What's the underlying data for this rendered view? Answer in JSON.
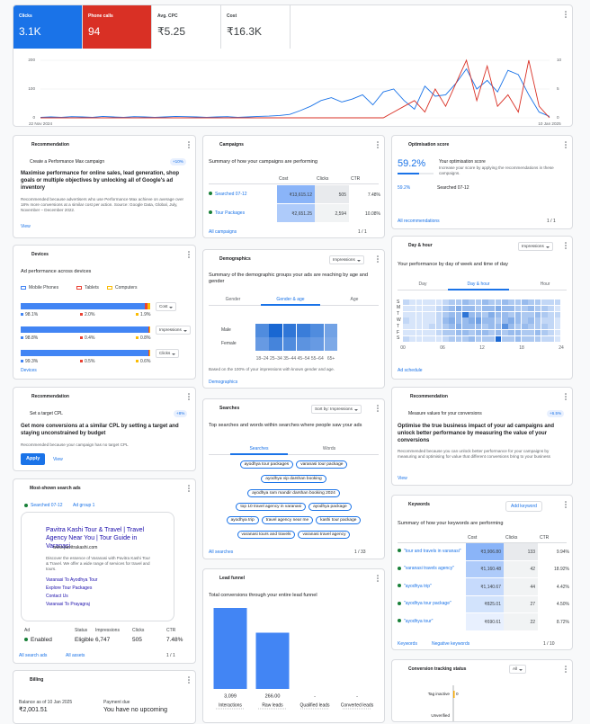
{
  "metrics": [
    {
      "value": "3.1K"
    },
    {
      "value": "94"
    },
    {
      "label": "Avg. CPC",
      "value": "₹5.25"
    },
    {
      "label": "Cost",
      "value": "₹16.3K"
    }
  ],
  "chart_data": {
    "type": "line",
    "categories": [
      "22 Nov 2024",
      null,
      null,
      null,
      null,
      null,
      null,
      null,
      null,
      null,
      null,
      null,
      null,
      null,
      null,
      null,
      null,
      null,
      null,
      null,
      null,
      null,
      null,
      null,
      null,
      null,
      null,
      null,
      null,
      null,
      null,
      null,
      null,
      null,
      null,
      null,
      null,
      null,
      null,
      null,
      null,
      null,
      null,
      null,
      null,
      null,
      null,
      null,
      null,
      "10 Jan 2025"
    ],
    "series": [
      {
        "name": "Clicks",
        "color": "#1a73e8",
        "values": [
          2,
          3,
          2,
          4,
          3,
          2,
          5,
          3,
          2,
          4,
          3,
          2,
          3,
          5,
          4,
          3,
          2,
          3,
          4,
          2,
          3,
          5,
          6,
          8,
          12,
          25,
          40,
          60,
          70,
          55,
          65,
          80,
          45,
          90,
          100,
          60,
          30,
          110,
          75,
          80,
          120,
          170,
          100,
          130,
          90,
          165,
          150,
          80,
          20,
          5
        ]
      },
      {
        "name": "Phone calls",
        "color": "#d93025",
        "axis": "y2",
        "values": [
          0,
          0,
          0,
          0,
          0,
          0,
          0,
          0,
          0,
          0,
          0,
          0,
          0,
          0,
          0,
          0,
          0,
          0,
          0,
          0,
          0,
          0,
          0,
          0,
          0,
          0,
          0,
          0,
          0,
          0,
          0,
          0,
          0,
          0,
          1,
          2,
          3,
          1,
          5,
          2,
          6,
          10,
          3,
          9,
          2,
          4,
          1,
          10,
          2,
          0
        ]
      }
    ],
    "ylim": [
      0,
      200
    ],
    "yticks": [
      0,
      100,
      200
    ],
    "y2lim": [
      0,
      10
    ],
    "y2ticks": [
      0,
      5,
      10
    ],
    "grid": true
  },
  "recommendation_1": {
    "title": "Recommendation",
    "name": "Create a Performance Max campaign",
    "uplift": "+10%",
    "headline": "Maximise performance for online sales, lead generation, shop goals or multiple objectives by unlocking all of Google's ad inventory",
    "reason": "Recommended because advertisers who use Performance Max achieve on average over 18% more conversions at a similar cost per action. Source: Google Data, Global, July, November – December 2022.",
    "link": "View"
  },
  "devices": {
    "title": "Devices",
    "subtitle": "Ad performance across devices",
    "chart": {
      "type": "stacked_bar",
      "legend": [
        {
          "name": "Mobile Phones",
          "color": "#4285f4"
        },
        {
          "name": "Tablets",
          "color": "#ea4335"
        },
        {
          "name": "Computers",
          "color": "#fbbc04"
        }
      ],
      "rows": [
        {
          "metric": "Cost",
          "values": [
            98.1,
            2.0,
            1.9
          ],
          "value_labels": [
            "98.1%",
            "2.0%",
            "1.9%"
          ]
        },
        {
          "metric": "Impressions",
          "values": [
            98.8,
            0.4,
            0.8
          ],
          "value_labels": [
            "98.8%",
            "0.4%",
            "0.8%"
          ]
        },
        {
          "metric": "Clicks",
          "values": [
            99.3,
            0.5,
            0.6
          ],
          "value_labels": [
            "99.3%",
            "0.5%",
            "0.6%"
          ]
        }
      ]
    },
    "link": "Devices"
  },
  "recommendation_2": {
    "title": "Recommendation",
    "name": "Set a target CPL",
    "uplift": "+8%",
    "headline": "Get more conversions at a similar CPL by setting a target and staying unconstrained by budget",
    "reason": "Recommended because your campaign has no target CPL",
    "button": "Apply",
    "link": "View"
  },
  "search_ads": {
    "title": "Most-shown search ads",
    "campaign": "Searched 07-12",
    "ad_group": "Ad group 1",
    "preview": {
      "headline": "Pavitra Kashi Tour & Travel | Travel Agency Near You | Tour Guide in Varanasi",
      "url": "www.pavitrakashi.com",
      "description": "Discover the essence of Varanasi with Pavitra Kashi Tour & Travel. We offer a wide range of services for travel and tours.",
      "sitelinks": [
        "Varanasi To Ayodhya Tour",
        "Explore Tour Packages",
        "Contact Us",
        "Varanasi To Prayagraj"
      ]
    },
    "headers": [
      "Ad",
      "Status",
      "Impressions",
      "Clicks",
      "CTR"
    ],
    "row": [
      "Enabled",
      "Eligible",
      "6,747",
      "505",
      "7.48%"
    ],
    "links": [
      "All search ads",
      "All assets"
    ],
    "pager": "1 / 1"
  },
  "billing": {
    "title": "Billing",
    "balance_label": "Balance as of 10 Jan 2025",
    "balance": "₹2,001.51",
    "due_label": "Payment due",
    "due_value": "You have no upcoming"
  },
  "campaigns": {
    "title": "Campaigns",
    "subtitle": "Summary of how your campaigns are performing",
    "headers": [
      "Cost",
      "Clicks",
      "CTR"
    ],
    "rows": [
      [
        "Searched 07-12",
        "₹13,615.12",
        "505",
        "7.48%"
      ],
      [
        "Tour Packages",
        "₹2,651.25",
        "2,594",
        "10.08%"
      ]
    ],
    "link": "All campaigns",
    "pager": "1 / 1"
  },
  "demographics": {
    "title": "Demographics",
    "metric": "Impressions",
    "subtitle": "Summary of the demographic groups your ads are reaching by age and gender",
    "tabs": [
      "Gender",
      "Gender & age",
      "Age"
    ],
    "chart": {
      "type": "heatmap",
      "categories": [
        "18–24",
        "25–34",
        "35–44",
        "45–54",
        "55–64",
        "65+"
      ],
      "series": [
        {
          "name": "Male",
          "values": [
            9,
            14,
            12,
            11,
            9,
            6
          ]
        },
        {
          "name": "Female",
          "values": [
            7,
            10,
            9,
            8,
            7,
            5
          ]
        }
      ]
    },
    "note": "Based on the 100% of your impressions with known gender and age.",
    "link": "Demographics"
  },
  "searches": {
    "title": "Searches",
    "sort": "Sort by: Impressions",
    "subtitle": "Top searches and words within searches where people saw your ads",
    "tabs": [
      "Searches",
      "Words"
    ],
    "terms": [
      "ayodhya tour packages",
      "varanasi tour package",
      "ayodhya vip darshan booking",
      "ayodhya ram mandir darshan booking 2024",
      "top 10 travel agency in varanasi",
      "ayodhya package",
      "ayodhya trip",
      "travel agency near me",
      "kashi tour package",
      "varanasi tours and travels",
      "varanasi travel agency"
    ],
    "link": "All searches",
    "pager": "1 / 33"
  },
  "lead_funnel": {
    "title": "Lead funnel",
    "subtitle": "Total conversions through your entire lead funnel",
    "chart": {
      "type": "bar",
      "log_scale": true,
      "color": "#4285f4",
      "categories": [
        "Interactions",
        "Raw leads",
        "Qualified leads",
        "Converted leads"
      ],
      "values": [
        3099,
        266,
        null,
        null
      ],
      "value_labels": [
        "3,099",
        "266.00",
        "-",
        "-"
      ]
    }
  },
  "optimisation": {
    "title": "Optimisation score",
    "score": 59.2,
    "score_label": "59.2%",
    "heading": "Your optimisation score",
    "description": "Increase your score by applying the recommendations in these campaigns.",
    "campaign_score": "59.2%",
    "campaign": "Searched 07-12",
    "link": "All recommendations",
    "pager": "1 / 1"
  },
  "day_hour": {
    "title": "Day & hour",
    "metric": "Impressions",
    "subtitle": "Your performance by day of week and time of day",
    "tabs": [
      "Day",
      "Day & hour",
      "Hour"
    ],
    "chart": {
      "type": "heatmap",
      "rows": [
        "S",
        "M",
        "T",
        "W",
        "T",
        "F",
        "S"
      ],
      "hour_labels": [
        "00",
        "06",
        "12",
        "18",
        "24"
      ],
      "values": [
        [
          1,
          0,
          0,
          0,
          0,
          0,
          1,
          2,
          2,
          3,
          2,
          2,
          3,
          2,
          2,
          3,
          2,
          2,
          3,
          2,
          2,
          1,
          1,
          1
        ],
        [
          0,
          0,
          0,
          0,
          0,
          1,
          2,
          3,
          4,
          3,
          3,
          2,
          3,
          3,
          4,
          3,
          3,
          2,
          2,
          3,
          2,
          2,
          1,
          0
        ],
        [
          0,
          0,
          0,
          0,
          0,
          1,
          2,
          3,
          3,
          8,
          3,
          3,
          2,
          4,
          3,
          3,
          2,
          3,
          2,
          2,
          3,
          2,
          1,
          1
        ],
        [
          1,
          0,
          0,
          0,
          0,
          1,
          3,
          4,
          3,
          3,
          4,
          5,
          3,
          3,
          2,
          3,
          4,
          3,
          2,
          3,
          2,
          1,
          1,
          0
        ],
        [
          0,
          0,
          0,
          0,
          1,
          1,
          2,
          3,
          4,
          3,
          3,
          3,
          2,
          3,
          3,
          6,
          3,
          2,
          3,
          2,
          2,
          2,
          1,
          0
        ],
        [
          0,
          0,
          0,
          0,
          0,
          1,
          2,
          2,
          3,
          3,
          2,
          3,
          3,
          2,
          3,
          2,
          3,
          3,
          2,
          2,
          3,
          2,
          1,
          0
        ],
        [
          1,
          0,
          0,
          0,
          0,
          0,
          1,
          2,
          2,
          2,
          3,
          2,
          2,
          2,
          9,
          2,
          2,
          3,
          2,
          2,
          2,
          1,
          1,
          0
        ]
      ]
    },
    "link": "Ad schedule"
  },
  "recommendation_3": {
    "title": "Recommendation",
    "name": "Measure values for your conversions",
    "uplift": "+6.5%",
    "headline": "Optimise the true business impact of your ad campaigns and unlock better performance by measuring the value of your conversions",
    "reason": "Recommended because you can unlock better performance for your campaigns by measuring and optimising for value that different conversions bring to your business",
    "link": "View"
  },
  "keywords": {
    "title": "Keywords",
    "button": "Add keyword",
    "subtitle": "Summary of how your keywords are performing",
    "headers": [
      "Cost",
      "Clicks",
      "CTR"
    ],
    "rows": [
      [
        "\"tour and travels in varanasi\"",
        "₹3,906.80",
        "133",
        "9.94%"
      ],
      [
        "\"varanasi travels agency\"",
        "₹1,160.48",
        "42",
        "18.92%"
      ],
      [
        "\"ayodhya trip\"",
        "₹1,140.67",
        "44",
        "4.42%"
      ],
      [
        "\"ayodhya tour package\"",
        "₹825.01",
        "27",
        "4.50%"
      ],
      [
        "\"ayodhya tour\"",
        "₹690.61",
        "22",
        "8.72%"
      ]
    ],
    "links": [
      "Keywords",
      "Negative keywords"
    ],
    "pager": "1 / 10"
  },
  "conversion_tracking": {
    "title": "Conversion tracking status",
    "filter": "All",
    "categories": [
      "Tag inactive",
      "Unverified"
    ],
    "xticks": [
      0
    ]
  }
}
